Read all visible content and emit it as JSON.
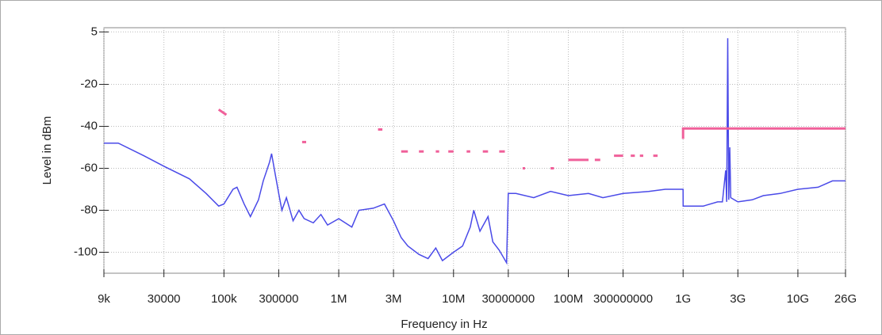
{
  "chart_data": {
    "type": "line",
    "x_label": "Frequency in Hz",
    "y_label": "Level in dBm",
    "xscale": "log",
    "grid": true,
    "xlim": [
      9000,
      26000000000
    ],
    "ylim": [
      -110,
      7
    ],
    "xticks": [
      {
        "value": 9000,
        "label": "9k"
      },
      30000,
      {
        "value": 100000,
        "label": "100k"
      },
      300000,
      {
        "value": 1000000,
        "label": "1M"
      },
      {
        "value": 3000000,
        "label": "3M"
      },
      {
        "value": 10000000,
        "label": "10M"
      },
      30000000,
      {
        "value": 100000000,
        "label": "100M"
      },
      300000000,
      {
        "value": 1000000000,
        "label": "1G"
      },
      {
        "value": 3000000000,
        "label": "3G"
      },
      {
        "value": 10000000000,
        "label": "10G"
      },
      {
        "value": 26000000000,
        "label": "26G"
      }
    ],
    "yticks": [
      5,
      -20,
      -40,
      -60,
      -80,
      -100
    ],
    "series": [
      {
        "color": "#4a4ae8",
        "x": [
          9000,
          12000,
          20000,
          30000,
          50000,
          70000,
          90000,
          100000,
          120000,
          130000,
          150000,
          170000,
          200000,
          220000,
          250000,
          260000,
          280000,
          300000,
          320000,
          350000,
          400000,
          450000,
          500000,
          600000,
          700000,
          800000,
          1000000,
          1300000,
          1500000,
          2000000,
          2500000,
          3000000,
          3500000,
          4000000,
          5000000,
          6000000,
          7000000,
          8000000,
          10000000,
          12000000,
          14000000,
          15000000,
          17000000,
          20000000,
          22000000,
          25000000,
          29000000,
          30000000,
          35000000,
          50000000,
          70000000,
          100000000,
          150000000,
          200000000,
          300000000,
          500000000,
          700000000,
          999000000,
          1001000000,
          1500000000,
          2000000000,
          2200000000,
          2350000000,
          2400000000,
          2450000000,
          2500000000,
          2550000000,
          2600000000,
          3000000000,
          4000000000,
          5000000000,
          7000000000,
          10000000000,
          15000000000,
          20000000000,
          26000000000
        ],
        "values": [
          -48,
          -48,
          -54,
          -59,
          -65,
          -72,
          -78,
          -77,
          -70,
          -69,
          -77,
          -83,
          -75,
          -66,
          -57,
          -53,
          -63,
          -72,
          -80,
          -74,
          -85,
          -80,
          -84,
          -86,
          -82,
          -87,
          -84,
          -88,
          -80,
          -79,
          -77,
          -85,
          -93,
          -97,
          -101,
          -103,
          -98,
          -104,
          -100,
          -97,
          -88,
          -80,
          -90,
          -83,
          -95,
          -99,
          -105,
          -72,
          -72,
          -74,
          -71,
          -73,
          -72,
          -74,
          -72,
          -71,
          -70,
          -70,
          -78,
          -78,
          -76,
          -76,
          -61,
          -76,
          2,
          -75,
          -50,
          -74,
          -76,
          -75,
          -73,
          -72,
          -70,
          -69,
          -66,
          -66
        ]
      },
      {
        "color": "#f0609a",
        "x": [
          90000,
          105000,
          105000,
          480000,
          520000,
          520000,
          2200000,
          2400000,
          2400000,
          3500000,
          4000000,
          4000000,
          5000000,
          5500000,
          5500000,
          7000000,
          7500000,
          7500000,
          9000000,
          10000000,
          10000000,
          13000000,
          14000000,
          14000000,
          18000000,
          20000000,
          20000000,
          25000000,
          28000000,
          28000000,
          40000000,
          42000000,
          42000000,
          70000000,
          75000000,
          75000000,
          100000000,
          150000000,
          150000000,
          170000000,
          190000000,
          190000000,
          250000000,
          300000000,
          300000000,
          350000000,
          380000000,
          380000000,
          420000000,
          450000000,
          450000000,
          550000000,
          600000000,
          600000000,
          1000000000,
          1000000000,
          26000000000
        ],
        "values": [
          -32,
          -34.5,
          null,
          -47.5,
          -47.5,
          null,
          -41.5,
          -41.5,
          null,
          -52,
          -52,
          null,
          -52,
          -52,
          null,
          -52,
          -52,
          null,
          -52,
          -52,
          null,
          -52,
          -52,
          null,
          -52,
          -52,
          null,
          -52,
          -52,
          null,
          -60,
          -60,
          null,
          -60,
          -60,
          null,
          -56,
          -56,
          null,
          -56,
          -56,
          null,
          -54,
          -54,
          null,
          -54,
          -54,
          null,
          -54,
          -54,
          null,
          -54,
          -54,
          null,
          -46,
          -41,
          -41
        ]
      }
    ]
  }
}
